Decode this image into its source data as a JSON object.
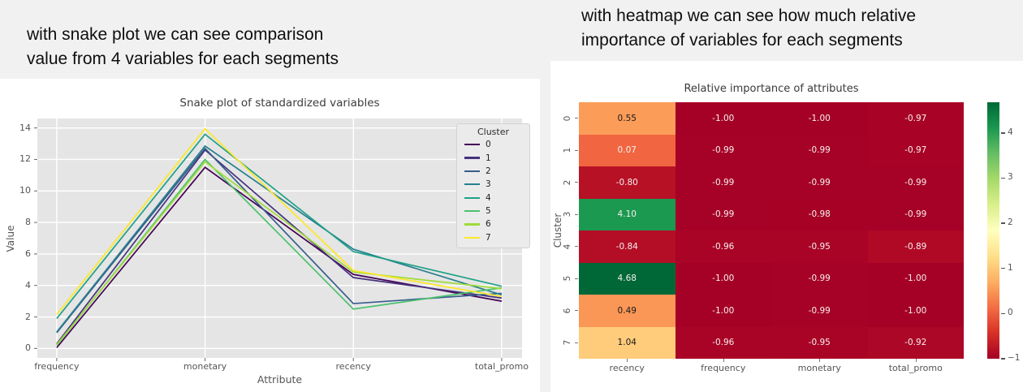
{
  "annotations": {
    "left_lines": [
      "with snake plot we can see comparison",
      "value from 4 variables for each segments"
    ],
    "right_lines": [
      "with heatmap we can see how much relative",
      "importance of variables for each segments"
    ]
  },
  "colors": {
    "plot_background": "#e5e5e5",
    "grid_line": "#ffffff",
    "figure_background": "#ffffff",
    "page_background": "#f2f1f1"
  },
  "chart_data": [
    {
      "type": "line",
      "title": "Snake plot of standardized variables",
      "xlabel": "Attribute",
      "ylabel": "Value",
      "categories": [
        "frequency",
        "monetary",
        "recency",
        "total_promo"
      ],
      "yticks": [
        0,
        2,
        4,
        6,
        8,
        10,
        12,
        14
      ],
      "ylim": [
        -0.6,
        14.6
      ],
      "grid": true,
      "legend_title": "Cluster",
      "legend_position": "upper right",
      "series": [
        {
          "name": "0",
          "color": "#440154",
          "values": [
            0.05,
            11.5,
            4.7,
            3.0
          ]
        },
        {
          "name": "1",
          "color": "#46327e",
          "values": [
            0.3,
            12.6,
            4.5,
            3.2
          ]
        },
        {
          "name": "2",
          "color": "#365c8d",
          "values": [
            1.0,
            12.7,
            2.85,
            3.5
          ]
        },
        {
          "name": "3",
          "color": "#277f8e",
          "values": [
            1.05,
            12.85,
            6.3,
            3.4
          ]
        },
        {
          "name": "4",
          "color": "#1fa187",
          "values": [
            1.9,
            13.6,
            6.15,
            3.95
          ]
        },
        {
          "name": "5",
          "color": "#4ac16d",
          "values": [
            0.2,
            12.0,
            2.5,
            3.85
          ]
        },
        {
          "name": "6",
          "color": "#a0da39",
          "values": [
            0.25,
            11.85,
            4.85,
            3.8
          ]
        },
        {
          "name": "7",
          "color": "#fde725",
          "values": [
            2.15,
            13.95,
            4.95,
            3.3
          ]
        }
      ]
    },
    {
      "type": "heatmap",
      "title": "Relative importance of attributes",
      "ylabel": "Cluster",
      "columns": [
        "recency",
        "frequency",
        "monetary",
        "total_promo"
      ],
      "rows": [
        "0",
        "1",
        "2",
        "3",
        "4",
        "5",
        "6",
        "7"
      ],
      "values": [
        [
          0.55,
          -1.0,
          -1.0,
          -0.97
        ],
        [
          0.07,
          -0.99,
          -0.99,
          -0.97
        ],
        [
          -0.8,
          -0.99,
          -0.99,
          -0.99
        ],
        [
          4.1,
          -0.99,
          -0.98,
          -0.99
        ],
        [
          -0.84,
          -0.96,
          -0.95,
          -0.89
        ],
        [
          4.68,
          -1.0,
          -0.99,
          -1.0
        ],
        [
          0.49,
          -1.0,
          -0.99,
          -1.0
        ],
        [
          1.04,
          -0.96,
          -0.95,
          -0.92
        ]
      ],
      "vmin": -1.0,
      "vmax": 4.68,
      "colorbar_ticks": [
        4,
        3,
        2,
        1,
        0,
        -1
      ],
      "palette_rdylgn": [
        "#a50026",
        "#d73027",
        "#f46d43",
        "#fdae61",
        "#fee08b",
        "#ffffbf",
        "#d9ef8b",
        "#a6d96a",
        "#66bd63",
        "#1a9850",
        "#006837"
      ]
    }
  ]
}
